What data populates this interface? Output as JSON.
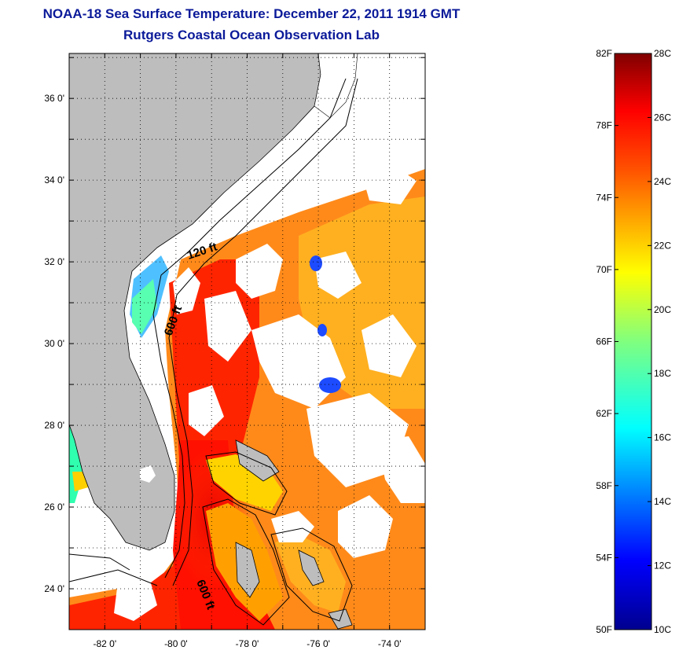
{
  "title_line1": "NOAA-18 Sea Surface Temperature:  December 22, 2011 1914 GMT",
  "title_line2": "Rutgers Coastal Ocean Observation Lab",
  "map": {
    "lon_ticks": [
      {
        "value": -82,
        "label": "-82 0'"
      },
      {
        "value": -80,
        "label": "-80 0'"
      },
      {
        "value": -78,
        "label": "-78 0'"
      },
      {
        "value": -76,
        "label": "-76 0'"
      },
      {
        "value": -74,
        "label": "-74 0'"
      }
    ],
    "lat_ticks": [
      {
        "value": 36,
        "label": "36 0'"
      },
      {
        "value": 34,
        "label": "34 0'"
      },
      {
        "value": 32,
        "label": "32 0'"
      },
      {
        "value": 30,
        "label": "30 0'"
      },
      {
        "value": 28,
        "label": "28 0'"
      },
      {
        "value": 26,
        "label": "26 0'"
      },
      {
        "value": 24,
        "label": "24 0'"
      }
    ],
    "lon_range": [
      -83.0,
      -73.0
    ],
    "lat_range": [
      23.0,
      37.1
    ],
    "grid": "dotted",
    "contour_labels": [
      "120 ft",
      "600 ft",
      "600 ft"
    ],
    "colors": {
      "land": "#bdbdbd",
      "cloud": "#ffffff",
      "warm": "#ff2000",
      "frame": "#000000"
    }
  },
  "colorbar": {
    "range_c": [
      10,
      28
    ],
    "range_f": [
      50,
      82
    ],
    "celsius_labels": [
      "28C",
      "26C",
      "24C",
      "22C",
      "20C",
      "18C",
      "16C",
      "14C",
      "12C",
      "10C"
    ],
    "fahrenheit_labels": [
      "82F",
      "78F",
      "74F",
      "70F",
      "66F",
      "62F",
      "58F",
      "54F",
      "50F"
    ],
    "colormap": "jet"
  }
}
